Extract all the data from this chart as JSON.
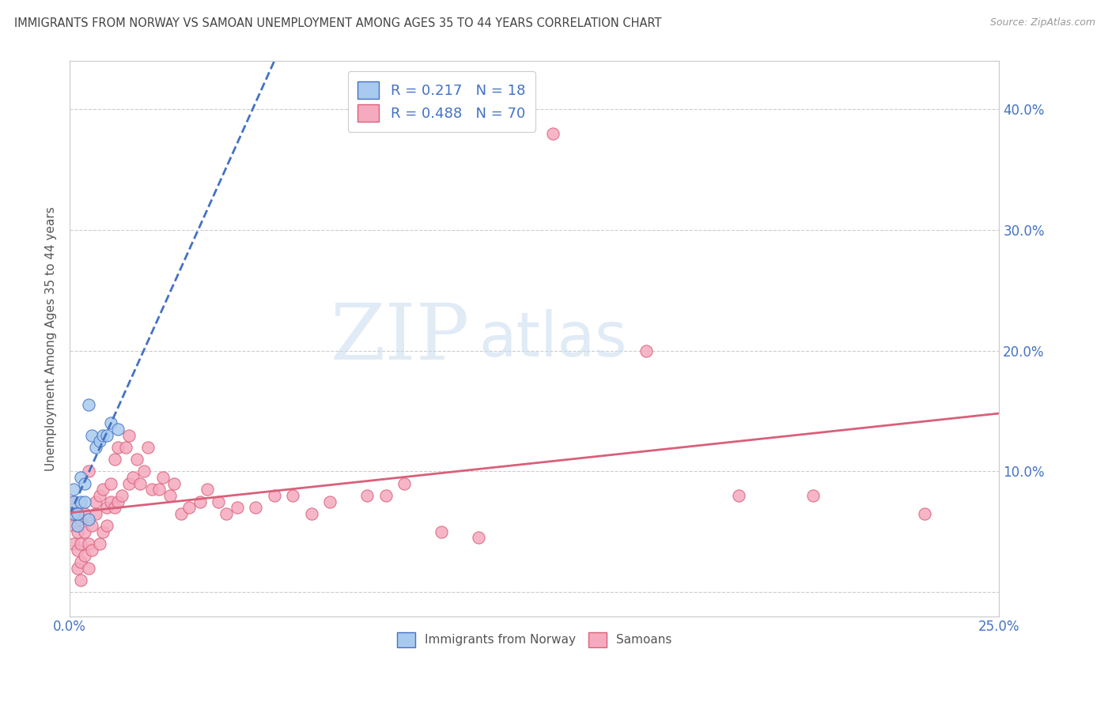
{
  "title": "IMMIGRANTS FROM NORWAY VS SAMOAN UNEMPLOYMENT AMONG AGES 35 TO 44 YEARS CORRELATION CHART",
  "source": "Source: ZipAtlas.com",
  "ylabel": "Unemployment Among Ages 35 to 44 years",
  "xlim": [
    0,
    0.25
  ],
  "ylim": [
    -0.02,
    0.44
  ],
  "yticks": [
    0.0,
    0.1,
    0.2,
    0.3,
    0.4
  ],
  "xticks": [
    0.0,
    0.05,
    0.1,
    0.15,
    0.2,
    0.25
  ],
  "norway_R": 0.217,
  "norway_N": 18,
  "samoan_R": 0.488,
  "samoan_N": 70,
  "norway_color": "#A8CAEE",
  "samoan_color": "#F5AABF",
  "norway_line_color": "#4472C4",
  "samoan_line_color": "#D9607A",
  "watermark_zip": "ZIP",
  "watermark_atlas": "atlas",
  "background_color": "#ffffff",
  "norway_x": [
    0.001,
    0.001,
    0.001,
    0.002,
    0.002,
    0.003,
    0.003,
    0.004,
    0.004,
    0.005,
    0.005,
    0.006,
    0.007,
    0.008,
    0.009,
    0.01,
    0.011,
    0.013
  ],
  "norway_y": [
    0.065,
    0.075,
    0.085,
    0.055,
    0.065,
    0.075,
    0.095,
    0.075,
    0.09,
    0.06,
    0.155,
    0.13,
    0.12,
    0.125,
    0.13,
    0.13,
    0.14,
    0.135
  ],
  "samoan_x": [
    0.001,
    0.001,
    0.001,
    0.001,
    0.002,
    0.002,
    0.002,
    0.002,
    0.003,
    0.003,
    0.003,
    0.003,
    0.004,
    0.004,
    0.004,
    0.005,
    0.005,
    0.005,
    0.006,
    0.006,
    0.007,
    0.007,
    0.008,
    0.008,
    0.009,
    0.009,
    0.01,
    0.01,
    0.011,
    0.011,
    0.012,
    0.012,
    0.013,
    0.013,
    0.014,
    0.015,
    0.016,
    0.016,
    0.017,
    0.018,
    0.019,
    0.02,
    0.021,
    0.022,
    0.024,
    0.025,
    0.027,
    0.028,
    0.03,
    0.032,
    0.035,
    0.037,
    0.04,
    0.042,
    0.045,
    0.05,
    0.055,
    0.06,
    0.065,
    0.07,
    0.08,
    0.085,
    0.09,
    0.1,
    0.11,
    0.13,
    0.155,
    0.18,
    0.2,
    0.23
  ],
  "samoan_y": [
    0.04,
    0.055,
    0.065,
    0.075,
    0.02,
    0.035,
    0.05,
    0.065,
    0.01,
    0.025,
    0.04,
    0.06,
    0.03,
    0.05,
    0.065,
    0.02,
    0.04,
    0.1,
    0.035,
    0.055,
    0.065,
    0.075,
    0.04,
    0.08,
    0.05,
    0.085,
    0.055,
    0.07,
    0.075,
    0.09,
    0.07,
    0.11,
    0.075,
    0.12,
    0.08,
    0.12,
    0.09,
    0.13,
    0.095,
    0.11,
    0.09,
    0.1,
    0.12,
    0.085,
    0.085,
    0.095,
    0.08,
    0.09,
    0.065,
    0.07,
    0.075,
    0.085,
    0.075,
    0.065,
    0.07,
    0.07,
    0.08,
    0.08,
    0.065,
    0.075,
    0.08,
    0.08,
    0.09,
    0.05,
    0.045,
    0.38,
    0.2,
    0.08,
    0.08,
    0.065
  ],
  "norway_trend_x": [
    0.0,
    0.25
  ],
  "samoan_trend_x": [
    0.0,
    0.25
  ]
}
